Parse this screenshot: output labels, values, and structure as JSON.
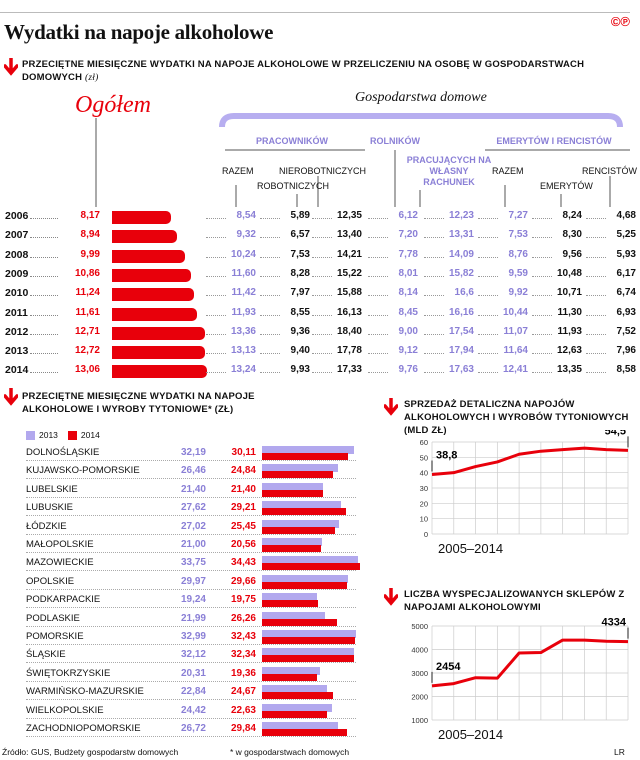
{
  "header": {
    "title": "Wydatki na napoje alkoholowe",
    "logo": "©℗"
  },
  "section1": {
    "subtitle": "Przeciętne miesięczne wydatki na napoje alkoholowe w przeliczeniu na osobę w gospodarstwach domowych",
    "unit": "(zł)",
    "ogolem_label": "Ogółem",
    "households_label": "Gospodarstwa domowe",
    "groups": {
      "pracownikow": "PRACOWNIKÓW",
      "rolnikow": "ROLNIKÓW",
      "pracujacych": "PRACUJĄCYCH NA WŁASNY RACHUNEK",
      "emerytow": "EMERYTÓW I RENCISTÓW"
    },
    "columns": {
      "razem1": "RAZEM",
      "robotniczych": "ROBOTNICZYCH",
      "nierobotniczych": "NIEROBOTNICZYCH",
      "razem2": "RAZEM",
      "emerytow": "EMERYTÓW",
      "rencistow": "RENCISTÓW"
    }
  },
  "chart_data": [
    {
      "type": "table",
      "rows": [
        {
          "year": "2006",
          "ogolem": "8,17",
          "prac_razem": "8,54",
          "robotniczych": "5,89",
          "nierobotniczych": "12,35",
          "rolnikow": "6,12",
          "pracujacych": "12,23",
          "emer_razem": "7,27",
          "emerytow": "8,24",
          "rencistow": "4,68"
        },
        {
          "year": "2007",
          "ogolem": "8,94",
          "prac_razem": "9,32",
          "robotniczych": "6,57",
          "nierobotniczych": "13,40",
          "rolnikow": "7,20",
          "pracujacych": "13,31",
          "emer_razem": "7,53",
          "emerytow": "8,30",
          "rencistow": "5,25"
        },
        {
          "year": "2008",
          "ogolem": "9,99",
          "prac_razem": "10,24",
          "robotniczych": "7,53",
          "nierobotniczych": "14,21",
          "rolnikow": "7,78",
          "pracujacych": "14,09",
          "emer_razem": "8,76",
          "emerytow": "9,56",
          "rencistow": "5,93"
        },
        {
          "year": "2009",
          "ogolem": "10,86",
          "prac_razem": "11,60",
          "robotniczych": "8,28",
          "nierobotniczych": "15,22",
          "rolnikow": "8,01",
          "pracujacych": "15,82",
          "emer_razem": "9,59",
          "emerytow": "10,48",
          "rencistow": "6,17"
        },
        {
          "year": "2010",
          "ogolem": "11,24",
          "prac_razem": "11,42",
          "robotniczych": "7,97",
          "nierobotniczych": "15,88",
          "rolnikow": "8,14",
          "pracujacych": "16,6",
          "emer_razem": "9,92",
          "emerytow": "10,71",
          "rencistow": "6,74"
        },
        {
          "year": "2011",
          "ogolem": "11,61",
          "prac_razem": "11,93",
          "robotniczych": "8,55",
          "nierobotniczych": "16,13",
          "rolnikow": "8,45",
          "pracujacych": "16,16",
          "emer_razem": "10,44",
          "emerytow": "11,30",
          "rencistow": "6,93"
        },
        {
          "year": "2012",
          "ogolem": "12,71",
          "prac_razem": "13,36",
          "robotniczych": "9,36",
          "nierobotniczych": "18,40",
          "rolnikow": "9,00",
          "pracujacych": "17,54",
          "emer_razem": "11,07",
          "emerytow": "11,93",
          "rencistow": "7,52"
        },
        {
          "year": "2013",
          "ogolem": "12,72",
          "prac_razem": "13,13",
          "robotniczych": "9,40",
          "nierobotniczych": "17,78",
          "rolnikow": "9,12",
          "pracujacych": "17,94",
          "emer_razem": "11,64",
          "emerytow": "12,63",
          "rencistow": "7,96"
        },
        {
          "year": "2014",
          "ogolem": "13,06",
          "prac_razem": "13,24",
          "robotniczych": "9,93",
          "nierobotniczych": "17,33",
          "rolnikow": "9,76",
          "pracujacych": "17,63",
          "emer_razem": "12,41",
          "emerytow": "13,35",
          "rencistow": "8,58"
        }
      ],
      "bar_values": [
        8.17,
        8.94,
        9.99,
        10.86,
        11.24,
        11.61,
        12.71,
        12.72,
        13.06
      ]
    },
    {
      "type": "bar",
      "title": "Przeciętne miesięczne wydatki na napoje alkoholowe i wyroby tytoniowe* (zł)",
      "series": [
        {
          "name": "2013",
          "color": "#b2a8ee"
        },
        {
          "name": "2014",
          "color": "#e8000b"
        }
      ],
      "categories": [
        "DOLNOŚLĄSKIE",
        "KUJAWSKO-POMORSKIE",
        "LUBELSKIE",
        "LUBUSKIE",
        "ŁÓDZKIE",
        "MAŁOPOLSKIE",
        "MAZOWIECKIE",
        "OPOLSKIE",
        "PODKARPACKIE",
        "PODLASKIE",
        "POMORSKIE",
        "ŚLĄSKIE",
        "ŚWIĘTOKRZYSKIE",
        "WARMIŃSKO-MAZURSKIE",
        "WIELKOPOLSKIE",
        "ZACHODNIOPOMORSKIE"
      ],
      "values_2013": [
        32.19,
        26.46,
        21.4,
        27.62,
        27.02,
        21.0,
        33.75,
        29.97,
        19.24,
        21.99,
        32.99,
        32.12,
        20.31,
        22.84,
        24.42,
        26.72
      ],
      "values_2014": [
        30.11,
        24.84,
        21.4,
        29.21,
        25.45,
        20.56,
        34.43,
        29.66,
        19.75,
        26.26,
        32.43,
        32.34,
        19.36,
        24.67,
        22.63,
        29.84
      ],
      "labels_2013": [
        "32,19",
        "26,46",
        "21,40",
        "27,62",
        "27,02",
        "21,00",
        "33,75",
        "29,97",
        "19,24",
        "21,99",
        "32,99",
        "32,12",
        "20,31",
        "22,84",
        "24,42",
        "26,72"
      ],
      "labels_2014": [
        "30,11",
        "24,84",
        "21,40",
        "29,21",
        "25,45",
        "20,56",
        "34,43",
        "29,66",
        "19,75",
        "26,26",
        "32,43",
        "32,34",
        "19,36",
        "24,67",
        "22,63",
        "29,84"
      ]
    },
    {
      "type": "line",
      "title": "Sprzedaż detaliczna napojów alkoholowych i wyrobów tytoniowych (mld zł)",
      "x": [
        2005,
        2006,
        2007,
        2008,
        2009,
        2010,
        2011,
        2012,
        2013,
        2014
      ],
      "y": [
        38.8,
        40,
        44,
        47,
        52,
        54,
        55,
        56,
        55,
        54.5
      ],
      "ylim": [
        0,
        60
      ],
      "yticks": [
        "0",
        "10",
        "20",
        "30",
        "40",
        "50",
        "60"
      ],
      "first_label": "38,8",
      "last_label": "54,5",
      "xlabel": "2005–2014",
      "color": "#e8000b"
    },
    {
      "type": "line",
      "title": "Liczba wyspecjalizowanych sklepów z napojami alkoholowymi",
      "x": [
        2005,
        2006,
        2007,
        2008,
        2009,
        2010,
        2011,
        2012,
        2013,
        2014
      ],
      "y": [
        2454,
        2550,
        2800,
        2780,
        3850,
        3870,
        4400,
        4400,
        4350,
        4334
      ],
      "ylim": [
        1000,
        5000
      ],
      "yticks": [
        "1000",
        "2000",
        "3000",
        "4000",
        "5000"
      ],
      "first_label": "2454",
      "last_label": "4334",
      "xlabel": "2005–2014",
      "color": "#e8000b"
    }
  ],
  "footer": {
    "source": "Źródło: GUS, Budżety gospodarstw domowych",
    "note": "* w gospodarstwach domowych",
    "author": "LR"
  }
}
